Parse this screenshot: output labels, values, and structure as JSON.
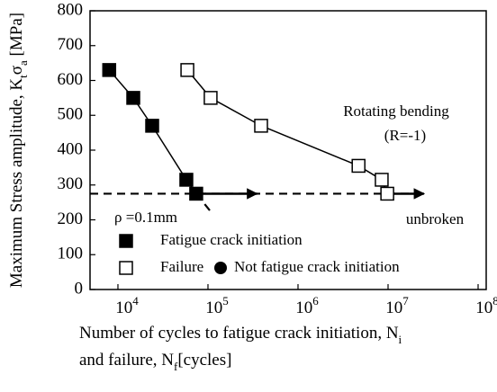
{
  "chart_data": {
    "type": "line",
    "y_label": [
      "Maximum Stress amplitude, K",
      "t",
      "σ",
      "a",
      " [MPa]"
    ],
    "x_label_line1": [
      "Number of cycles to fatigue crack initiation, N",
      "i"
    ],
    "x_label_line2": [
      "and failure, N",
      "f",
      "[cycles]"
    ],
    "log_x": true,
    "xlim": [
      4900,
      123000000
    ],
    "xticks": [
      {
        "value": 10000,
        "label": "10^4"
      },
      {
        "value": 100000,
        "label": "10^5"
      },
      {
        "value": 1000000,
        "label": "10^6"
      },
      {
        "value": 10000000,
        "label": "10^7"
      },
      {
        "value": 100000000,
        "label": "10^8"
      }
    ],
    "ylim": [
      0,
      800
    ],
    "yticks": [
      0,
      100,
      200,
      300,
      400,
      500,
      600,
      700,
      800
    ],
    "series": [
      {
        "name": "Fatigue crack initiation",
        "marker": "filled-square",
        "color": "#000",
        "x": [
          8000,
          14800,
          24000,
          57500,
          74000
        ],
        "values": [
          630,
          550,
          470,
          315,
          275
        ]
      },
      {
        "name": "Failure",
        "marker": "open-square",
        "color": "#000",
        "x": [
          59000,
          107000,
          389000,
          4700000,
          8500000,
          9800000
        ],
        "values": [
          630,
          550,
          470,
          355,
          315,
          275
        ]
      },
      {
        "name": "Not fatigue crack initiation",
        "marker": "filled-circle",
        "color": "#000",
        "x": [
          74000
        ],
        "values": [
          275
        ]
      }
    ],
    "dashed_lines": [
      {
        "x": [
          4900,
          25000000
        ],
        "values": [
          275,
          275
        ]
      },
      {
        "x": [
          74000,
          110000
        ],
        "values": [
          275,
          220
        ]
      }
    ],
    "arrows": [
      {
        "x": [
          74000,
          350000
        ],
        "values": [
          275,
          275
        ]
      },
      {
        "x": [
          9800000,
          25000000
        ],
        "values": [
          275,
          275
        ]
      }
    ],
    "annotations": [
      "Rotating bending",
      "(R=-1)",
      "unbroken",
      "ρ =0.1mm"
    ]
  }
}
